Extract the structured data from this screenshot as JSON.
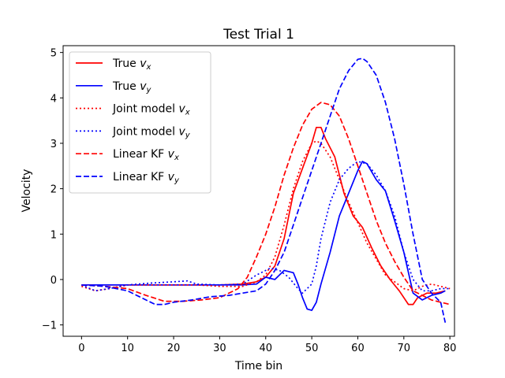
{
  "chart_data": {
    "type": "line",
    "title": "Test Trial 1",
    "xlabel": "Time bin",
    "ylabel": "Velocity",
    "xlim": [
      -4,
      81
    ],
    "ylim": [
      -1.25,
      5.15
    ],
    "xticks": [
      0,
      10,
      20,
      30,
      40,
      50,
      60,
      70,
      80
    ],
    "yticks": [
      -1,
      0,
      1,
      2,
      3,
      4,
      5
    ],
    "grid": false,
    "legend_position": "top-left",
    "series": [
      {
        "name": "True v_x",
        "label_main": "True ",
        "label_sub": "x",
        "color": "#ff0000",
        "style": "solid",
        "x": [
          0,
          5,
          10,
          15,
          20,
          25,
          30,
          35,
          38,
          40,
          42,
          44,
          46,
          48,
          50,
          51,
          52,
          53,
          55,
          57,
          59,
          61,
          63,
          65,
          67,
          69,
          71,
          72,
          73,
          75,
          77,
          79
        ],
        "y": [
          -0.12,
          -0.12,
          -0.12,
          -0.12,
          -0.12,
          -0.12,
          -0.12,
          -0.1,
          -0.05,
          0.05,
          0.3,
          0.9,
          1.9,
          2.45,
          3.0,
          3.35,
          3.35,
          3.1,
          2.7,
          1.9,
          1.4,
          1.15,
          0.7,
          0.3,
          0.0,
          -0.25,
          -0.55,
          -0.55,
          -0.4,
          -0.3,
          -0.3,
          -0.25
        ]
      },
      {
        "name": "True v_y",
        "label_main": "True ",
        "label_sub": "y",
        "color": "#0000ff",
        "style": "solid",
        "x": [
          0,
          5,
          10,
          15,
          20,
          25,
          30,
          35,
          38,
          40,
          42,
          44,
          46,
          47,
          48,
          49,
          50,
          51,
          52,
          54,
          56,
          58,
          60,
          61,
          62,
          64,
          66,
          68,
          70,
          72,
          74,
          76,
          78,
          79
        ],
        "y": [
          -0.12,
          -0.12,
          -0.12,
          -0.12,
          -0.12,
          -0.12,
          -0.12,
          -0.12,
          -0.1,
          0.05,
          0.0,
          0.2,
          0.15,
          -0.1,
          -0.4,
          -0.65,
          -0.68,
          -0.5,
          -0.1,
          0.6,
          1.4,
          1.9,
          2.4,
          2.6,
          2.55,
          2.2,
          1.95,
          1.3,
          0.6,
          -0.3,
          -0.45,
          -0.35,
          -0.3,
          -0.25
        ]
      },
      {
        "name": "Joint model v_x",
        "label_main": "Joint model ",
        "label_sub": "x",
        "color": "#ff0000",
        "style": "dotted",
        "x": [
          0,
          3,
          6,
          10,
          15,
          20,
          25,
          30,
          35,
          38,
          40,
          42,
          44,
          46,
          48,
          50,
          51,
          52,
          54,
          56,
          58,
          60,
          62,
          64,
          66,
          68,
          70,
          72,
          74,
          76,
          78,
          80
        ],
        "y": [
          -0.15,
          -0.25,
          -0.2,
          -0.12,
          -0.12,
          -0.12,
          -0.12,
          -0.15,
          -0.15,
          -0.05,
          0.1,
          0.5,
          1.2,
          2.0,
          2.6,
          3.0,
          3.05,
          3.0,
          2.7,
          2.2,
          1.7,
          1.25,
          0.8,
          0.45,
          0.1,
          -0.05,
          -0.2,
          -0.25,
          -0.15,
          -0.1,
          -0.15,
          -0.2
        ]
      },
      {
        "name": "Joint model v_y",
        "label_main": "Joint model ",
        "label_sub": "y",
        "color": "#0000ff",
        "style": "dotted",
        "x": [
          0,
          3,
          6,
          10,
          15,
          20,
          23,
          25,
          30,
          35,
          38,
          41,
          43,
          45,
          47,
          48,
          50,
          51,
          52,
          54,
          56,
          58,
          60,
          62,
          64,
          66,
          68,
          70,
          72,
          74,
          76,
          78,
          80
        ],
        "y": [
          -0.12,
          -0.25,
          -0.2,
          -0.12,
          -0.08,
          -0.05,
          -0.03,
          -0.1,
          -0.12,
          -0.1,
          0.1,
          0.25,
          0.2,
          0.05,
          -0.2,
          -0.3,
          -0.1,
          0.3,
          0.9,
          1.7,
          2.2,
          2.45,
          2.6,
          2.55,
          2.3,
          1.95,
          1.4,
          0.6,
          0.0,
          -0.25,
          -0.25,
          -0.2,
          -0.2
        ]
      },
      {
        "name": "Linear KF v_x",
        "label_main": "Linear KF ",
        "label_sub": "x",
        "color": "#ff0000",
        "style": "dashed",
        "x": [
          0,
          5,
          10,
          14,
          18,
          22,
          26,
          30,
          34,
          36,
          38,
          40,
          42,
          44,
          46,
          48,
          50,
          52,
          54,
          56,
          58,
          60,
          62,
          64,
          66,
          68,
          70,
          72,
          74,
          76,
          78,
          80
        ],
        "y": [
          -0.12,
          -0.15,
          -0.2,
          -0.35,
          -0.48,
          -0.48,
          -0.45,
          -0.4,
          -0.2,
          0.05,
          0.5,
          1.0,
          1.6,
          2.3,
          2.9,
          3.4,
          3.75,
          3.9,
          3.85,
          3.6,
          3.1,
          2.5,
          1.9,
          1.3,
          0.8,
          0.4,
          0.05,
          -0.25,
          -0.35,
          -0.45,
          -0.5,
          -0.55
        ]
      },
      {
        "name": "Linear KF v_y",
        "label_main": "Linear KF ",
        "label_sub": "y",
        "color": "#0000ff",
        "style": "dashed",
        "x": [
          0,
          5,
          10,
          14,
          16,
          18,
          20,
          24,
          28,
          32,
          35,
          38,
          40,
          42,
          44,
          46,
          48,
          50,
          52,
          54,
          56,
          58,
          60,
          61,
          62,
          64,
          66,
          68,
          70,
          72,
          74,
          76,
          78,
          79
        ],
        "y": [
          -0.12,
          -0.15,
          -0.25,
          -0.45,
          -0.55,
          -0.55,
          -0.5,
          -0.45,
          -0.38,
          -0.35,
          -0.3,
          -0.25,
          -0.1,
          0.2,
          0.6,
          1.2,
          1.8,
          2.4,
          3.0,
          3.6,
          4.2,
          4.6,
          4.85,
          4.87,
          4.8,
          4.5,
          3.9,
          3.1,
          2.1,
          1.0,
          0.0,
          -0.3,
          -0.5,
          -0.95
        ]
      }
    ]
  }
}
